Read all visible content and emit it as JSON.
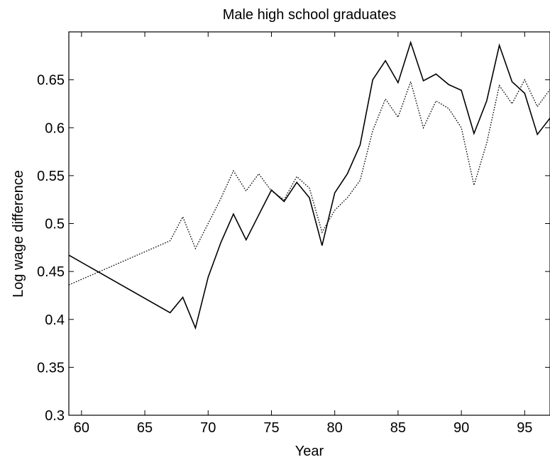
{
  "chart_data": {
    "type": "line",
    "title": "Male high school graduates",
    "xlabel": "Year",
    "ylabel": "Log wage difference",
    "xlim": [
      59,
      97
    ],
    "ylim": [
      0.3,
      0.7
    ],
    "x_ticks": [
      60,
      65,
      70,
      75,
      80,
      85,
      90,
      95
    ],
    "x_tick_labels": [
      "60",
      "65",
      "70",
      "75",
      "80",
      "85",
      "90",
      "95"
    ],
    "y_ticks": [
      0.3,
      0.35,
      0.4,
      0.45,
      0.5,
      0.55,
      0.6,
      0.65
    ],
    "y_tick_labels": [
      "0.3",
      "0.35",
      "0.4",
      "0.45",
      "0.5",
      "0.55",
      "0.6",
      "0.65"
    ],
    "grid": false,
    "series": [
      {
        "style": "solid",
        "color": "#000000",
        "x": [
          59,
          67,
          68,
          69,
          70,
          71,
          72,
          73,
          74,
          75,
          76,
          77,
          78,
          79,
          80,
          81,
          82,
          83,
          84,
          85,
          86,
          87,
          88,
          89,
          90,
          91,
          92,
          93,
          94,
          95,
          96,
          97
        ],
        "y": [
          0.467,
          0.407,
          0.423,
          0.391,
          0.444,
          0.48,
          0.51,
          0.483,
          0.509,
          0.535,
          0.523,
          0.543,
          0.527,
          0.477,
          0.532,
          0.552,
          0.582,
          0.65,
          0.67,
          0.647,
          0.689,
          0.649,
          0.656,
          0.645,
          0.639,
          0.594,
          0.628,
          0.686,
          0.648,
          0.636,
          0.593,
          0.61
        ]
      },
      {
        "style": "dotted",
        "color": "#000000",
        "x": [
          59,
          67,
          68,
          69,
          70,
          71,
          72,
          73,
          74,
          75,
          76,
          77,
          78,
          79,
          80,
          81,
          82,
          83,
          84,
          85,
          86,
          87,
          88,
          89,
          90,
          91,
          92,
          93,
          94,
          95,
          96,
          97
        ],
        "y": [
          0.436,
          0.482,
          0.507,
          0.474,
          0.5,
          0.526,
          0.555,
          0.534,
          0.552,
          0.534,
          0.525,
          0.549,
          0.537,
          0.491,
          0.514,
          0.527,
          0.545,
          0.597,
          0.63,
          0.611,
          0.648,
          0.6,
          0.628,
          0.62,
          0.6,
          0.54,
          0.584,
          0.644,
          0.625,
          0.65,
          0.622,
          0.64
        ]
      }
    ]
  }
}
